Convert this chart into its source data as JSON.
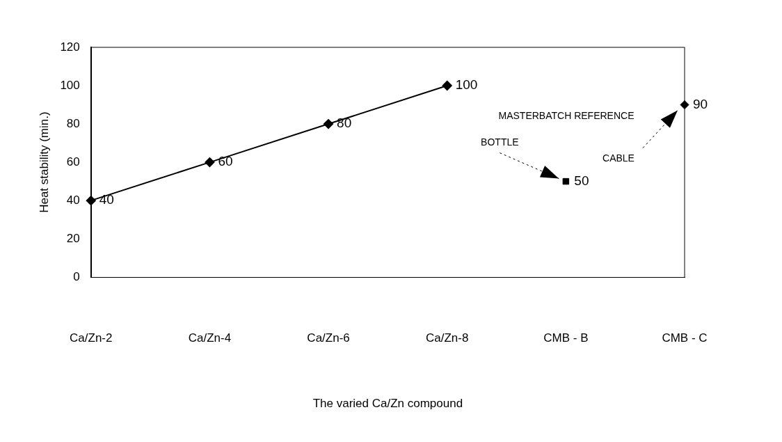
{
  "chart_data": {
    "type": "line",
    "xlabel": "The varied Ca/Zn compound",
    "ylabel": "Heat stability (min.)",
    "categories": [
      "Ca/Zn-2",
      "Ca/Zn-4",
      "Ca/Zn-6",
      "Ca/Zn-8",
      "CMB - B",
      "CMB - C"
    ],
    "series": [
      {
        "color": "#000000",
        "marker": "diamond",
        "values": [
          40,
          60,
          80,
          100,
          null,
          null
        ]
      },
      {
        "type": "scatter",
        "color": "#000000",
        "marker": "square",
        "values": [
          null,
          null,
          null,
          null,
          50,
          null
        ]
      },
      {
        "type": "scatter",
        "color": "#000000",
        "marker": "diamond",
        "values": [
          null,
          null,
          null,
          null,
          null,
          90
        ]
      }
    ],
    "ylim": [
      0,
      120
    ],
    "yticks": [
      0,
      20,
      40,
      60,
      80,
      100,
      120
    ],
    "grid": false,
    "legend": false,
    "data_labels": true,
    "line_style": "solid",
    "annotations": [
      "MASTERBATCH REFERENCE",
      "BOTTLE",
      "CABLE"
    ]
  }
}
